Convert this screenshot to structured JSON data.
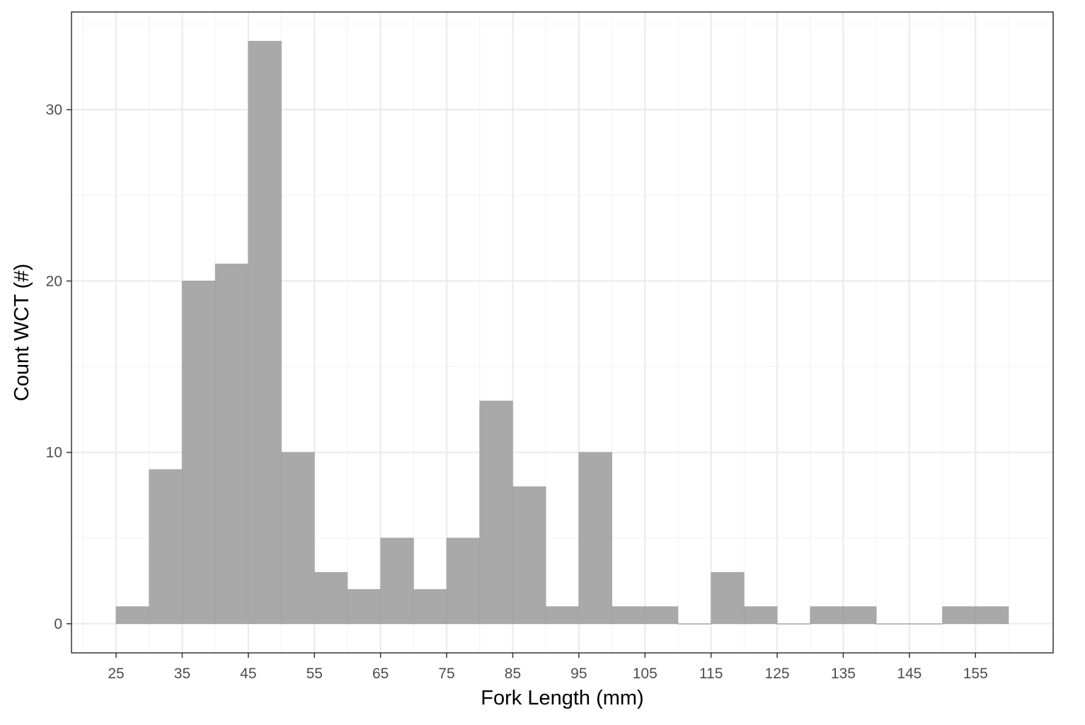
{
  "chart_data": {
    "type": "bar",
    "subtype": "histogram",
    "title": "",
    "xlabel": "Fork Length (mm)",
    "ylabel": "Count WCT (#)",
    "bin_width": 5,
    "bins": [
      {
        "x0": 25,
        "x1": 30,
        "count": 1
      },
      {
        "x0": 30,
        "x1": 35,
        "count": 9
      },
      {
        "x0": 35,
        "x1": 40,
        "count": 20
      },
      {
        "x0": 40,
        "x1": 45,
        "count": 21
      },
      {
        "x0": 45,
        "x1": 50,
        "count": 34
      },
      {
        "x0": 50,
        "x1": 55,
        "count": 10
      },
      {
        "x0": 55,
        "x1": 60,
        "count": 3
      },
      {
        "x0": 60,
        "x1": 65,
        "count": 2
      },
      {
        "x0": 65,
        "x1": 70,
        "count": 5
      },
      {
        "x0": 70,
        "x1": 75,
        "count": 2
      },
      {
        "x0": 75,
        "x1": 80,
        "count": 5
      },
      {
        "x0": 80,
        "x1": 85,
        "count": 13
      },
      {
        "x0": 85,
        "x1": 90,
        "count": 8
      },
      {
        "x0": 90,
        "x1": 95,
        "count": 1
      },
      {
        "x0": 95,
        "x1": 100,
        "count": 10
      },
      {
        "x0": 100,
        "x1": 105,
        "count": 1
      },
      {
        "x0": 105,
        "x1": 110,
        "count": 1
      },
      {
        "x0": 110,
        "x1": 115,
        "count": 0
      },
      {
        "x0": 115,
        "x1": 120,
        "count": 3
      },
      {
        "x0": 120,
        "x1": 125,
        "count": 1
      },
      {
        "x0": 125,
        "x1": 130,
        "count": 0
      },
      {
        "x0": 130,
        "x1": 135,
        "count": 1
      },
      {
        "x0": 135,
        "x1": 140,
        "count": 1
      },
      {
        "x0": 140,
        "x1": 145,
        "count": 0
      },
      {
        "x0": 145,
        "x1": 150,
        "count": 0
      },
      {
        "x0": 150,
        "x1": 155,
        "count": 1
      },
      {
        "x0": 155,
        "x1": 160,
        "count": 1
      }
    ],
    "xlim": [
      18.25,
      166.75
    ],
    "ylim": [
      -1.7,
      35.7
    ],
    "x_ticks": [
      25,
      35,
      45,
      55,
      65,
      75,
      85,
      95,
      105,
      115,
      125,
      135,
      145,
      155
    ],
    "x_minor_grid": [
      20,
      30,
      40,
      50,
      60,
      70,
      80,
      90,
      100,
      110,
      120,
      130,
      140,
      150,
      160
    ],
    "y_ticks": [
      0,
      10,
      20,
      30
    ],
    "y_minor_grid": [
      5,
      15,
      25,
      35
    ],
    "grid": true,
    "legend": "none",
    "colors": {
      "bar_fill": "#a9a9a9",
      "bar_edge": "#9c9c9c",
      "grid_major": "#ebebeb",
      "grid_minor": "#f3f3f3",
      "panel_border": "#333333",
      "tick_text": "#4d4d4d",
      "title_text": "#000000"
    }
  }
}
